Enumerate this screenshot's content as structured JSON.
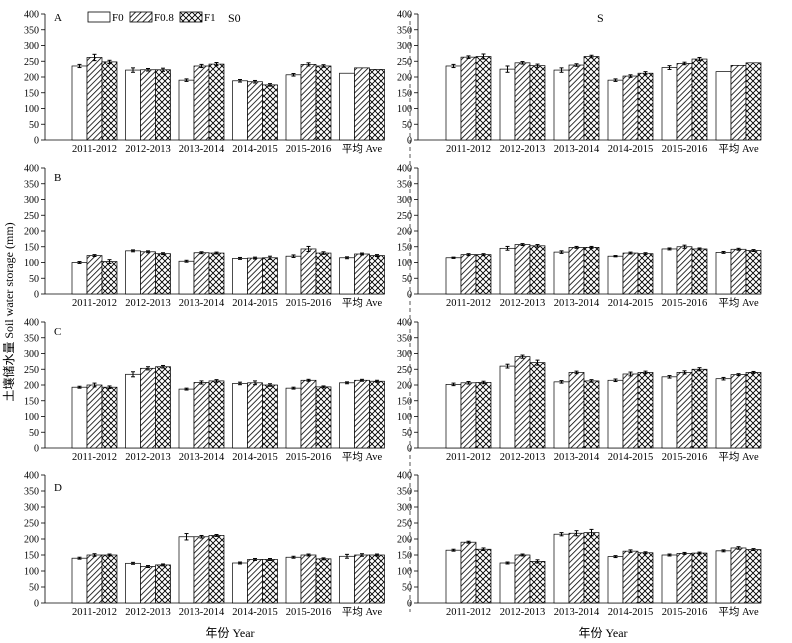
{
  "figure": {
    "ylabel": "土壤储水量 Soil water storage (mm)",
    "xlabel": "年份 Year",
    "legend": [
      {
        "label": "F0",
        "pattern": "empty"
      },
      {
        "label": "F0.8",
        "pattern": "diagonal"
      },
      {
        "label": "F1",
        "pattern": "crosshatch"
      }
    ],
    "column_titles": [
      "S0",
      "S"
    ],
    "row_labels": [
      "A",
      "B",
      "C",
      "D"
    ],
    "colors": {
      "bar_fill": "#ffffff",
      "stroke": "#000000",
      "divider": "#555555"
    }
  },
  "chart_data": [
    {
      "type": "bar",
      "panel": "A",
      "column": "S0",
      "categories": [
        "2011-2012",
        "2012-2013",
        "2013-2014",
        "2014-2015",
        "2015-2016",
        "平均 Ave"
      ],
      "ylim": [
        0,
        400
      ],
      "yticks": [
        0,
        50,
        100,
        150,
        200,
        250,
        300,
        350,
        400
      ],
      "series": [
        {
          "name": "F0",
          "values": [
            235,
            222,
            190,
            188,
            207,
            212
          ],
          "err": [
            5,
            7,
            4,
            4,
            4,
            0
          ]
        },
        {
          "name": "F0.8",
          "values": [
            262,
            223,
            235,
            185,
            240,
            229
          ],
          "err": [
            10,
            4,
            5,
            4,
            5,
            0
          ]
        },
        {
          "name": "F1",
          "values": [
            248,
            223,
            241,
            175,
            235,
            224
          ],
          "err": [
            5,
            5,
            5,
            4,
            4,
            0
          ]
        }
      ]
    },
    {
      "type": "bar",
      "panel": "A",
      "column": "S",
      "categories": [
        "2011-2012",
        "2012-2013",
        "2013-2014",
        "2014-2015",
        "2015-2016",
        "平均 Ave"
      ],
      "ylim": [
        0,
        400
      ],
      "yticks": [
        0,
        50,
        100,
        150,
        200,
        250,
        300,
        350,
        400
      ],
      "series": [
        {
          "name": "F0",
          "values": [
            235,
            225,
            222,
            190,
            230,
            217
          ],
          "err": [
            5,
            10,
            7,
            4,
            6,
            0
          ]
        },
        {
          "name": "F0.8",
          "values": [
            263,
            245,
            238,
            203,
            243,
            237
          ],
          "err": [
            4,
            4,
            4,
            4,
            4,
            0
          ]
        },
        {
          "name": "F1",
          "values": [
            265,
            236,
            265,
            212,
            257,
            245
          ],
          "err": [
            8,
            5,
            4,
            5,
            5,
            0
          ]
        }
      ]
    },
    {
      "type": "bar",
      "panel": "B",
      "column": "S0",
      "categories": [
        "2011-2012",
        "2012-2013",
        "2013-2014",
        "2014-2015",
        "2015-2016",
        "平均 Ave"
      ],
      "ylim": [
        0,
        400
      ],
      "yticks": [
        0,
        50,
        100,
        150,
        200,
        250,
        300,
        350,
        400
      ],
      "series": [
        {
          "name": "F0",
          "values": [
            100,
            137,
            104,
            113,
            120,
            115
          ],
          "err": [
            3,
            3,
            3,
            3,
            4,
            3
          ]
        },
        {
          "name": "F0.8",
          "values": [
            122,
            134,
            131,
            114,
            143,
            127
          ],
          "err": [
            3,
            3,
            3,
            3,
            8,
            3
          ]
        },
        {
          "name": "F1",
          "values": [
            103,
            128,
            130,
            115,
            130,
            122
          ],
          "err": [
            6,
            3,
            3,
            5,
            4,
            3
          ]
        }
      ]
    },
    {
      "type": "bar",
      "panel": "B",
      "column": "S",
      "categories": [
        "2011-2012",
        "2012-2013",
        "2013-2014",
        "2014-2015",
        "2015-2016",
        "平均 Ave"
      ],
      "ylim": [
        0,
        400
      ],
      "yticks": [
        0,
        50,
        100,
        150,
        200,
        250,
        300,
        350,
        400
      ],
      "series": [
        {
          "name": "F0",
          "values": [
            115,
            145,
            133,
            120,
            143,
            132
          ],
          "err": [
            2,
            6,
            4,
            2,
            3,
            3
          ]
        },
        {
          "name": "F0.8",
          "values": [
            125,
            157,
            148,
            130,
            150,
            142
          ],
          "err": [
            3,
            3,
            3,
            3,
            5,
            3
          ]
        },
        {
          "name": "F1",
          "values": [
            125,
            153,
            148,
            128,
            143,
            138
          ],
          "err": [
            3,
            4,
            3,
            3,
            3,
            3
          ]
        }
      ]
    },
    {
      "type": "bar",
      "panel": "C",
      "column": "S0",
      "categories": [
        "2011-2012",
        "2012-2013",
        "2013-2014",
        "2014-2015",
        "2015-2016",
        "平均 Ave"
      ],
      "ylim": [
        0,
        400
      ],
      "yticks": [
        0,
        50,
        100,
        150,
        200,
        250,
        300,
        350,
        400
      ],
      "series": [
        {
          "name": "F0",
          "values": [
            193,
            234,
            187,
            205,
            190,
            207
          ],
          "err": [
            3,
            8,
            3,
            4,
            3,
            3
          ]
        },
        {
          "name": "F0.8",
          "values": [
            200,
            253,
            208,
            207,
            215,
            215
          ],
          "err": [
            6,
            5,
            5,
            6,
            3,
            3
          ]
        },
        {
          "name": "F1",
          "values": [
            193,
            258,
            213,
            200,
            194,
            212
          ],
          "err": [
            4,
            4,
            4,
            4,
            3,
            3
          ]
        }
      ]
    },
    {
      "type": "bar",
      "panel": "C",
      "column": "S",
      "categories": [
        "2011-2012",
        "2012-2013",
        "2013-2014",
        "2014-2015",
        "2015-2016",
        "平均 Ave"
      ],
      "ylim": [
        0,
        400
      ],
      "yticks": [
        0,
        50,
        100,
        150,
        200,
        250,
        300,
        350,
        400
      ],
      "series": [
        {
          "name": "F0",
          "values": [
            202,
            260,
            210,
            215,
            226,
            220
          ],
          "err": [
            4,
            6,
            4,
            4,
            4,
            4
          ]
        },
        {
          "name": "F0.8",
          "values": [
            207,
            290,
            240,
            235,
            240,
            233
          ],
          "err": [
            4,
            5,
            4,
            6,
            5,
            3
          ]
        },
        {
          "name": "F1",
          "values": [
            208,
            271,
            213,
            240,
            250,
            240
          ],
          "err": [
            4,
            8,
            4,
            4,
            5,
            3
          ]
        }
      ]
    },
    {
      "type": "bar",
      "panel": "D",
      "column": "S0",
      "categories": [
        "2011-2012",
        "2012-2013",
        "2013-2014",
        "2014-2015",
        "2015-2016",
        "平均 Ave"
      ],
      "ylim": [
        0,
        400
      ],
      "yticks": [
        0,
        50,
        100,
        150,
        200,
        250,
        300,
        350,
        400
      ],
      "series": [
        {
          "name": "F0",
          "values": [
            140,
            124,
            207,
            125,
            143,
            146
          ],
          "err": [
            3,
            3,
            10,
            3,
            3,
            6
          ]
        },
        {
          "name": "F0.8",
          "values": [
            150,
            114,
            207,
            136,
            150,
            150
          ],
          "err": [
            4,
            3,
            4,
            3,
            3,
            4
          ]
        },
        {
          "name": "F1",
          "values": [
            150,
            119,
            211,
            136,
            138,
            150
          ],
          "err": [
            3,
            3,
            3,
            3,
            3,
            3
          ]
        }
      ]
    },
    {
      "type": "bar",
      "panel": "D",
      "column": "S",
      "categories": [
        "2011-2012",
        "2012-2013",
        "2013-2014",
        "2014-2015",
        "2015-2016",
        "平均 Ave"
      ],
      "ylim": [
        0,
        400
      ],
      "yticks": [
        0,
        50,
        100,
        150,
        200,
        250,
        300,
        350,
        400
      ],
      "series": [
        {
          "name": "F0",
          "values": [
            165,
            125,
            215,
            145,
            150,
            163
          ],
          "err": [
            3,
            3,
            5,
            3,
            3,
            3
          ]
        },
        {
          "name": "F0.8",
          "values": [
            190,
            150,
            218,
            162,
            155,
            172
          ],
          "err": [
            3,
            3,
            8,
            4,
            3,
            4
          ]
        },
        {
          "name": "F1",
          "values": [
            168,
            130,
            220,
            157,
            156,
            167
          ],
          "err": [
            4,
            5,
            10,
            3,
            3,
            3
          ]
        }
      ]
    }
  ]
}
